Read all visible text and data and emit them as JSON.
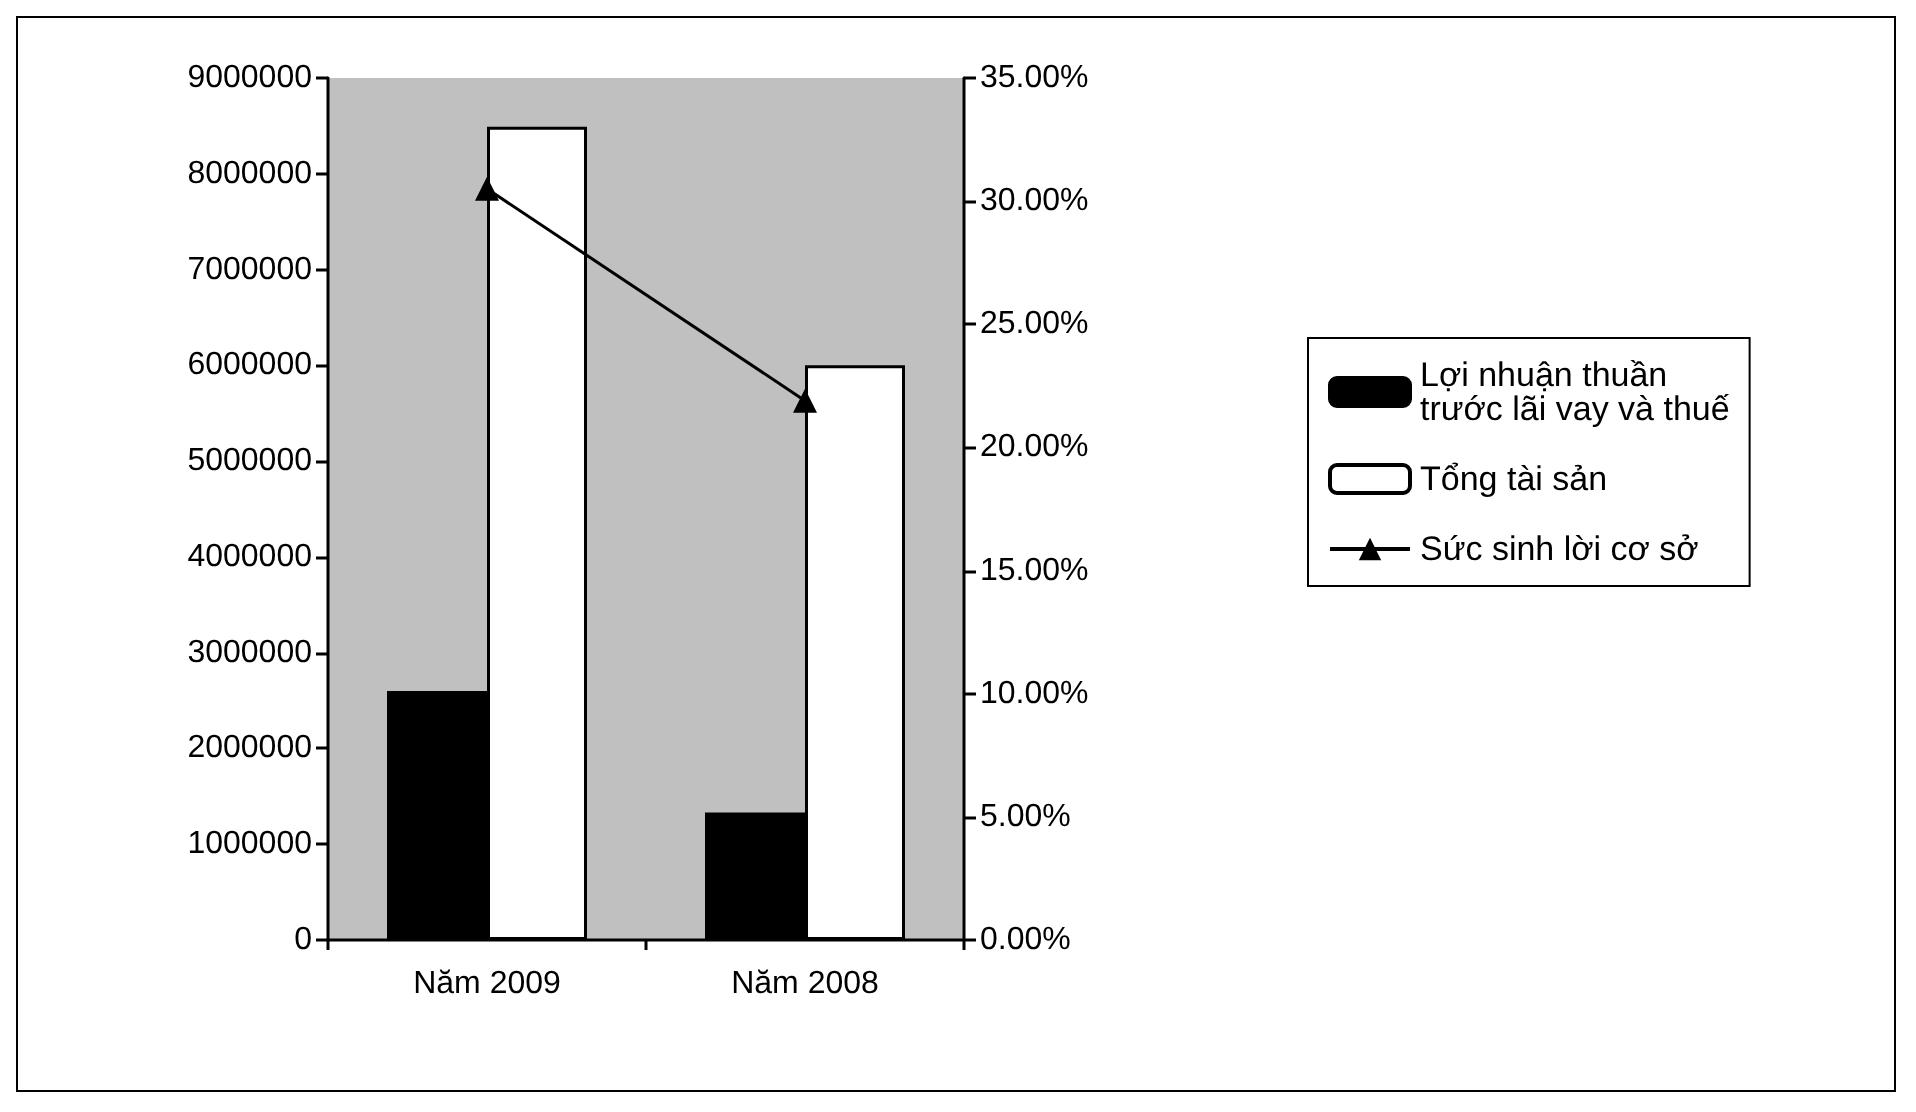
{
  "chart_data": {
    "type": "bar",
    "categories": [
      "Năm 2009",
      "Năm 2008"
    ],
    "series": [
      {
        "name": "Lợi nhuận thuần trước lãi vay và thuế",
        "color": "#000000",
        "values": [
          2600000,
          1330000
        ]
      },
      {
        "name": "Tổng tài sản",
        "color": "#ffffff",
        "values": [
          8490000,
          6000000
        ]
      },
      {
        "name": "Sức sinh lời cơ sở",
        "type": "line",
        "axis": "y2",
        "color": "#000000",
        "marker": "triangle",
        "values": [
          30.5,
          21.9
        ]
      }
    ],
    "ylim": [
      0,
      9000000
    ],
    "yticks": [
      0,
      1000000,
      2000000,
      3000000,
      4000000,
      5000000,
      6000000,
      7000000,
      8000000,
      9000000
    ],
    "y2lim": [
      0,
      35
    ],
    "y2ticks": [
      {
        "value": 0,
        "label": "0.00%"
      },
      {
        "value": 5,
        "label": "5.00%"
      },
      {
        "value": 10,
        "label": "10.00%"
      },
      {
        "value": 15,
        "label": "15.00%"
      },
      {
        "value": 20,
        "label": "20.00%"
      },
      {
        "value": 25,
        "label": "25.00%"
      },
      {
        "value": 30,
        "label": "30.00%"
      },
      {
        "value": 35,
        "label": "35.00%"
      }
    ],
    "grid": false,
    "legend": "right"
  }
}
